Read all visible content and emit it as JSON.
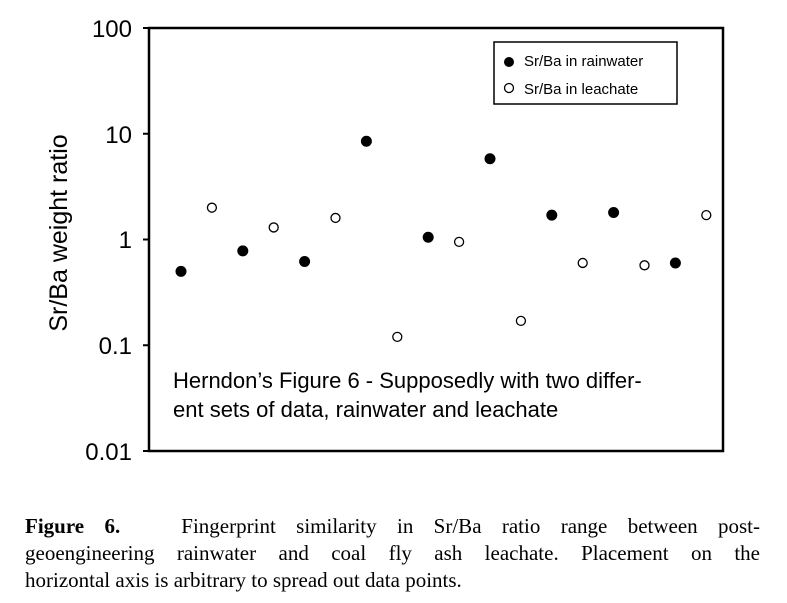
{
  "chart_data": {
    "type": "scatter",
    "ylabel": "Sr/Ba weight ratio",
    "xlabel": "",
    "yscale": "log",
    "ylim": [
      0.01,
      100
    ],
    "y_ticks": [
      "100",
      "10",
      "1",
      "0.1",
      "0.01"
    ],
    "x_ticks": [],
    "grid": false,
    "legend_position": "top-right",
    "series": [
      {
        "name": "Sr/Ba in rainwater",
        "marker": "filled-circle",
        "x": [
          1,
          3,
          5,
          7,
          9,
          11,
          13,
          15,
          17
        ],
        "y": [
          0.5,
          0.78,
          0.62,
          8.5,
          1.05,
          5.8,
          1.7,
          1.8,
          0.6
        ]
      },
      {
        "name": "Sr/Ba in leachate",
        "marker": "open-circle",
        "x": [
          2,
          4,
          6,
          8,
          10,
          12,
          14,
          16,
          18
        ],
        "y": [
          2.0,
          1.3,
          1.6,
          0.12,
          0.95,
          0.17,
          0.6,
          0.57,
          1.7
        ]
      }
    ],
    "annotation": {
      "line1": "Herndon’s Figure 6 - Supposedly with two differ-",
      "line2": "ent sets of data, rainwater and leachate"
    }
  },
  "caption": {
    "label": "Figure 6.",
    "line1": "Fingerprint similarity in Sr/Ba ratio range between post-",
    "line2": "geoengineering rainwater and coal fly ash leachate. Placement on the",
    "line3": "horizontal axis is arbitrary to spread out data points."
  }
}
